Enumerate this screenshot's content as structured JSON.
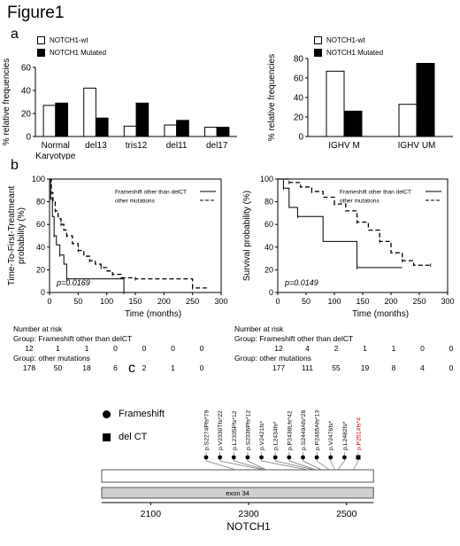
{
  "figure_title": "Figure1",
  "panels": {
    "a": "a",
    "b": "b",
    "c": "c"
  },
  "legend": {
    "wt": "NOTCH1-wt",
    "mut": "NOTCH1 Mutated"
  },
  "chart_data": [
    {
      "type": "bar",
      "categories": [
        "Normal Karyotype",
        "del13",
        "tris12",
        "del11",
        "del17"
      ],
      "category_lines": [
        [
          "Normal",
          "Karyotype"
        ],
        [
          "del13"
        ],
        [
          "tris12"
        ],
        [
          "del11"
        ],
        [
          "del17"
        ]
      ],
      "series": [
        {
          "name": "NOTCH1-wt",
          "values": [
            27,
            42,
            9,
            10,
            8
          ],
          "color": "#ffffff"
        },
        {
          "name": "NOTCH1 Mutated",
          "values": [
            29,
            16,
            29,
            14,
            8
          ],
          "color": "#000000"
        }
      ],
      "ylabel": "% relative frequencies",
      "ylim": [
        0,
        60
      ],
      "yticks": [
        0,
        20,
        40,
        60
      ],
      "legend_position": "top-left"
    },
    {
      "type": "bar",
      "categories": [
        "IGHV M",
        "IGHV UM"
      ],
      "series": [
        {
          "name": "NOTCH1-wt",
          "values": [
            67,
            33
          ],
          "color": "#ffffff"
        },
        {
          "name": "NOTCH1 Mutated",
          "values": [
            26,
            75
          ],
          "color": "#000000"
        }
      ],
      "ylabel": "% relative frequencies",
      "ylim": [
        0,
        80
      ],
      "yticks": [
        0,
        20,
        40,
        60,
        80
      ],
      "legend_position": "top-left"
    },
    {
      "type": "line",
      "subtype": "kaplan-meier",
      "xlabel": "Time (months)",
      "ylabel": "Time-To-First-Treatment probability (%)",
      "ylabel_lines": [
        "Time-To-First-Treatmeant",
        "probability (%)"
      ],
      "xlim": [
        0,
        300
      ],
      "ylim": [
        0,
        100
      ],
      "xticks": [
        0,
        50,
        100,
        150,
        200,
        250,
        300
      ],
      "yticks": [
        0,
        20,
        40,
        60,
        80,
        100
      ],
      "annotation": "p=0.0169",
      "series": [
        {
          "name": "Frameshift other than delCT",
          "style": "solid",
          "x": [
            0,
            2,
            5,
            8,
            12,
            18,
            25,
            30,
            130,
            130
          ],
          "y": [
            100,
            83,
            67,
            50,
            42,
            33,
            25,
            12,
            12,
            0
          ]
        },
        {
          "name": "other mutations",
          "style": "dashed",
          "x": [
            0,
            3,
            6,
            10,
            15,
            20,
            25,
            30,
            40,
            50,
            60,
            70,
            80,
            90,
            100,
            110,
            125,
            150,
            200,
            250,
            275
          ],
          "y": [
            100,
            88,
            80,
            72,
            65,
            60,
            55,
            50,
            43,
            37,
            32,
            28,
            25,
            22,
            19,
            16,
            13,
            12,
            12,
            4,
            4
          ]
        }
      ],
      "legend_position": "top-right",
      "risk_table": {
        "title": "Number at risk",
        "groups": [
          {
            "label": "Group: Frameshift other than delCT",
            "values": [
              "12",
              "1",
              "1",
              "0",
              "0",
              "0",
              "0"
            ]
          },
          {
            "label": "Group: other mutations",
            "values": [
              "178",
              "50",
              "18",
              "6",
              "2",
              "1",
              "0"
            ]
          }
        ]
      }
    },
    {
      "type": "line",
      "subtype": "kaplan-meier",
      "xlabel": "Time (months)",
      "ylabel": "Survival probability (%)",
      "xlim": [
        0,
        300
      ],
      "ylim": [
        0,
        100
      ],
      "xticks": [
        0,
        50,
        100,
        150,
        200,
        250,
        300
      ],
      "yticks": [
        0,
        20,
        40,
        60,
        80,
        100
      ],
      "annotation": "p=0.0149",
      "series": [
        {
          "name": "Frameshift other than delCT",
          "style": "solid",
          "x": [
            0,
            10,
            20,
            35,
            80,
            140,
            220
          ],
          "y": [
            100,
            92,
            75,
            67,
            45,
            22,
            22
          ]
        },
        {
          "name": "other mutations",
          "style": "dashed",
          "x": [
            0,
            20,
            40,
            60,
            80,
            100,
            120,
            140,
            160,
            180,
            200,
            220,
            240,
            270
          ],
          "y": [
            100,
            97,
            93,
            89,
            84,
            78,
            72,
            62,
            55,
            45,
            35,
            28,
            24,
            24
          ]
        }
      ],
      "legend_position": "top-right",
      "risk_table": {
        "title": "Number at risk",
        "groups": [
          {
            "label": "Group: Frameshift other than delCT",
            "values": [
              "12",
              "4",
              "2",
              "1",
              "1",
              "0",
              "0"
            ]
          },
          {
            "label": "Group: other mutations",
            "values": [
              "177",
              "111",
              "55",
              "19",
              "8",
              "4",
              "0"
            ]
          }
        ]
      }
    }
  ],
  "protein_map": {
    "legend": {
      "frameshift": "Frameshift",
      "delct": "del CT"
    },
    "domain_label": "exon 34",
    "gene_label": "NOTCH1",
    "axis_ticks": [
      2100,
      2300,
      2500
    ],
    "axis_range": [
      2000,
      2560
    ],
    "protein_range": [
      2000,
      2555
    ],
    "mutations": [
      {
        "label": "p.S2274Pfs*79",
        "pos": 2274,
        "type": "frameshift",
        "color": "#000000"
      },
      {
        "label": "p.V2330Tfs*22",
        "pos": 2330,
        "type": "frameshift",
        "color": "#000000"
      },
      {
        "label": "p.L2335Pfs*12",
        "pos": 2335,
        "type": "frameshift",
        "color": "#000000"
      },
      {
        "label": "p.S2336Pfs*12",
        "pos": 2336,
        "type": "frameshift",
        "color": "#000000"
      },
      {
        "label": "p.V2421fs*",
        "pos": 2421,
        "type": "frameshift",
        "color": "#000000"
      },
      {
        "label": "p.L2434fs*",
        "pos": 2434,
        "type": "frameshift",
        "color": "#000000"
      },
      {
        "label": "p.P2438Lfs*42",
        "pos": 2438,
        "type": "frameshift",
        "color": "#000000"
      },
      {
        "label": "p.S2449Afs*28",
        "pos": 2449,
        "type": "frameshift",
        "color": "#000000"
      },
      {
        "label": "p.P2465Afs*13",
        "pos": 2465,
        "type": "frameshift",
        "color": "#000000"
      },
      {
        "label": "p.V2476fs*",
        "pos": 2476,
        "type": "frameshift",
        "color": "#000000"
      },
      {
        "label": "p.L2482fs*",
        "pos": 2482,
        "type": "frameshift",
        "color": "#000000"
      },
      {
        "label": "p.P2514fs*4",
        "pos": 2514,
        "type": "delct",
        "color": "#cc0000"
      }
    ]
  }
}
